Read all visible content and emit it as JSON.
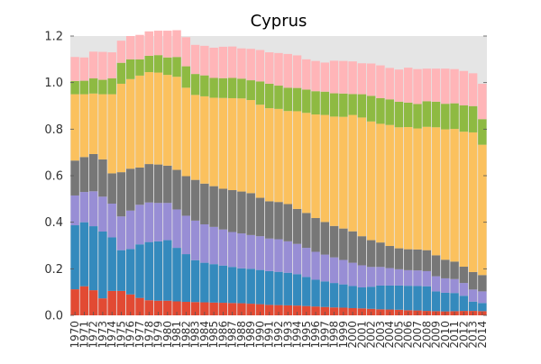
{
  "chart_data": {
    "type": "bar",
    "stacked": true,
    "title": "Cyprus",
    "xlabel": "",
    "ylabel": "",
    "ylim": [
      0,
      1.2
    ],
    "yticks": [
      "0.0",
      "0.2",
      "0.4",
      "0.6",
      "0.8",
      "1.0",
      "1.2"
    ],
    "grid": false,
    "plot_background": "#e5e5e5",
    "categories": [
      "1970",
      "1971",
      "1972",
      "1973",
      "1974",
      "1975",
      "1976",
      "1977",
      "1978",
      "1979",
      "1980",
      "1981",
      "1982",
      "1983",
      "1984",
      "1985",
      "1986",
      "1987",
      "1988",
      "1989",
      "1990",
      "1991",
      "1992",
      "1993",
      "1994",
      "1995",
      "1996",
      "1997",
      "1998",
      "1999",
      "2000",
      "2001",
      "2002",
      "2003",
      "2004",
      "2005",
      "2006",
      "2007",
      "2008",
      "2009",
      "2010",
      "2011",
      "2012",
      "2013",
      "2014"
    ],
    "series": [
      {
        "color": "#e24a33",
        "values": [
          0.112,
          0.125,
          0.108,
          0.073,
          0.105,
          0.105,
          0.09,
          0.075,
          0.065,
          0.063,
          0.063,
          0.06,
          0.058,
          0.057,
          0.056,
          0.055,
          0.054,
          0.053,
          0.052,
          0.05,
          0.048,
          0.045,
          0.044,
          0.043,
          0.042,
          0.04,
          0.038,
          0.036,
          0.034,
          0.033,
          0.031,
          0.03,
          0.028,
          0.026,
          0.025,
          0.024,
          0.022,
          0.021,
          0.019,
          0.018,
          0.017,
          0.018,
          0.019,
          0.019,
          0.018
        ]
      },
      {
        "color": "#348abd",
        "values": [
          0.275,
          0.275,
          0.275,
          0.287,
          0.23,
          0.175,
          0.195,
          0.23,
          0.25,
          0.255,
          0.26,
          0.23,
          0.205,
          0.18,
          0.17,
          0.165,
          0.16,
          0.155,
          0.15,
          0.15,
          0.147,
          0.145,
          0.143,
          0.14,
          0.135,
          0.125,
          0.115,
          0.11,
          0.105,
          0.1,
          0.095,
          0.09,
          0.095,
          0.102,
          0.103,
          0.104,
          0.105,
          0.105,
          0.106,
          0.085,
          0.08,
          0.078,
          0.065,
          0.04,
          0.035
        ]
      },
      {
        "color": "#988ed5",
        "values": [
          0.128,
          0.13,
          0.15,
          0.15,
          0.145,
          0.145,
          0.165,
          0.17,
          0.17,
          0.165,
          0.16,
          0.165,
          0.165,
          0.17,
          0.165,
          0.16,
          0.155,
          0.15,
          0.15,
          0.145,
          0.145,
          0.14,
          0.14,
          0.135,
          0.13,
          0.125,
          0.12,
          0.115,
          0.11,
          0.105,
          0.1,
          0.095,
          0.085,
          0.08,
          0.075,
          0.07,
          0.067,
          0.067,
          0.065,
          0.065,
          0.062,
          0.06,
          0.055,
          0.052,
          0.05
        ]
      },
      {
        "color": "#777777",
        "values": [
          0.15,
          0.15,
          0.16,
          0.16,
          0.13,
          0.19,
          0.18,
          0.16,
          0.165,
          0.165,
          0.16,
          0.17,
          0.17,
          0.175,
          0.175,
          0.175,
          0.175,
          0.18,
          0.18,
          0.18,
          0.165,
          0.16,
          0.16,
          0.16,
          0.15,
          0.15,
          0.145,
          0.14,
          0.135,
          0.135,
          0.135,
          0.125,
          0.115,
          0.105,
          0.095,
          0.09,
          0.09,
          0.09,
          0.09,
          0.09,
          0.08,
          0.075,
          0.07,
          0.075,
          0.07
        ]
      },
      {
        "color": "#fbc15e",
        "values": [
          0.285,
          0.27,
          0.26,
          0.28,
          0.34,
          0.38,
          0.385,
          0.395,
          0.395,
          0.395,
          0.39,
          0.4,
          0.38,
          0.365,
          0.375,
          0.38,
          0.39,
          0.395,
          0.4,
          0.4,
          0.4,
          0.4,
          0.4,
          0.4,
          0.42,
          0.43,
          0.445,
          0.46,
          0.47,
          0.48,
          0.5,
          0.51,
          0.51,
          0.51,
          0.52,
          0.52,
          0.525,
          0.52,
          0.53,
          0.55,
          0.56,
          0.57,
          0.58,
          0.6,
          0.56
        ]
      },
      {
        "color": "#8eba42",
        "values": [
          0.057,
          0.058,
          0.065,
          0.062,
          0.068,
          0.09,
          0.085,
          0.07,
          0.07,
          0.075,
          0.075,
          0.085,
          0.092,
          0.09,
          0.09,
          0.085,
          0.085,
          0.087,
          0.085,
          0.085,
          0.1,
          0.105,
          0.1,
          0.1,
          0.1,
          0.1,
          0.1,
          0.1,
          0.1,
          0.1,
          0.09,
          0.1,
          0.11,
          0.11,
          0.11,
          0.11,
          0.105,
          0.105,
          0.11,
          0.11,
          0.11,
          0.11,
          0.113,
          0.113,
          0.11
        ]
      },
      {
        "color": "#ffb5b8",
        "values": [
          0.103,
          0.1,
          0.115,
          0.12,
          0.112,
          0.095,
          0.1,
          0.105,
          0.105,
          0.105,
          0.115,
          0.115,
          0.125,
          0.125,
          0.127,
          0.13,
          0.135,
          0.135,
          0.13,
          0.135,
          0.135,
          0.135,
          0.14,
          0.145,
          0.14,
          0.13,
          0.13,
          0.125,
          0.14,
          0.14,
          0.14,
          0.133,
          0.139,
          0.141,
          0.135,
          0.138,
          0.15,
          0.15,
          0.14,
          0.142,
          0.151,
          0.147,
          0.148,
          0.141,
          0.152
        ]
      }
    ]
  }
}
